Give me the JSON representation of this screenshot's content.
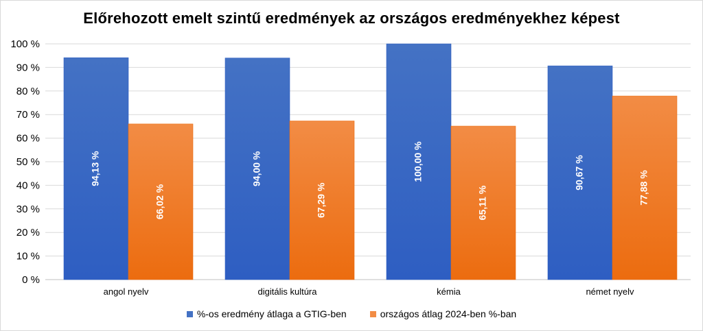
{
  "chart_data": {
    "type": "bar",
    "title": "Előrehozott emelt szintű eredmények az országos eredményekhez képest",
    "categories": [
      "angol nyelv",
      "digitális kultúra",
      "kémia",
      "német nyelv"
    ],
    "series": [
      {
        "name": "%-os eredmény átlaga a GTIG-ben",
        "values": [
          94.13,
          94.0,
          100.0,
          90.67
        ],
        "labels": [
          "94,13 %",
          "94,00 %",
          "100,00 %",
          "90,67 %"
        ],
        "color": "#4472c4",
        "color_dark": "#2e5ec2"
      },
      {
        "name": "országos átlag 2024-ben %-ban",
        "values": [
          66.02,
          67.29,
          65.11,
          77.88
        ],
        "labels": [
          "66,02 %",
          "67,29 %",
          "65,11 %",
          "77,88 %"
        ],
        "color": "#f28c45",
        "color_dark": "#ec6c0f"
      }
    ],
    "ylim": [
      0,
      100
    ],
    "yticks": [
      0,
      10,
      20,
      30,
      40,
      50,
      60,
      70,
      80,
      90,
      100
    ],
    "ytick_labels": [
      "0 %",
      "10 %",
      "20 %",
      "30 %",
      "40 %",
      "50 %",
      "60 %",
      "70 %",
      "80 %",
      "90 %",
      "100 %"
    ],
    "grid": true,
    "legend_position": "bottom",
    "data_labels_rotated": true
  }
}
